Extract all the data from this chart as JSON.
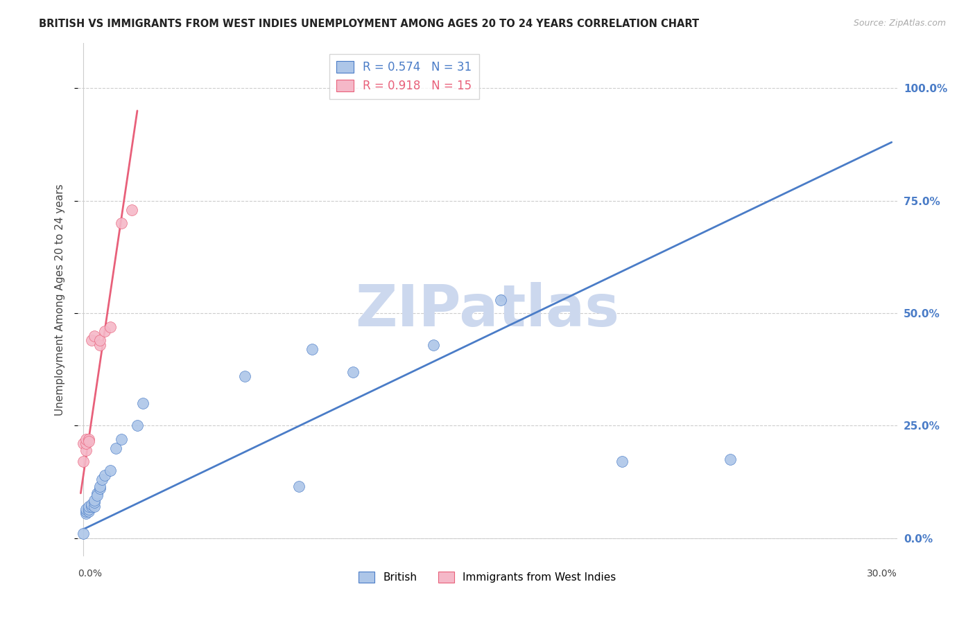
{
  "title": "BRITISH VS IMMIGRANTS FROM WEST INDIES UNEMPLOYMENT AMONG AGES 20 TO 24 YEARS CORRELATION CHART",
  "source": "Source: ZipAtlas.com",
  "ylabel": "Unemployment Among Ages 20 to 24 years",
  "british_R": 0.574,
  "british_N": 31,
  "wi_R": 0.918,
  "wi_N": 15,
  "british_color": "#adc6e8",
  "wi_color": "#f5b8c8",
  "british_line_color": "#4a7cc7",
  "wi_line_color": "#e8607a",
  "right_axis_color": "#4a7cc7",
  "legend_british_color": "#adc6e8",
  "legend_wi_color": "#f5b8c8",
  "british_x": [
    0.0,
    0.001,
    0.001,
    0.001,
    0.002,
    0.002,
    0.002,
    0.003,
    0.003,
    0.004,
    0.004,
    0.004,
    0.005,
    0.005,
    0.006,
    0.006,
    0.007,
    0.008,
    0.01,
    0.012,
    0.014,
    0.02,
    0.022,
    0.06,
    0.08,
    0.085,
    0.1,
    0.13,
    0.155,
    0.2,
    0.24
  ],
  "british_y": [
    0.01,
    0.055,
    0.06,
    0.065,
    0.06,
    0.065,
    0.07,
    0.07,
    0.075,
    0.07,
    0.08,
    0.085,
    0.1,
    0.095,
    0.11,
    0.115,
    0.13,
    0.14,
    0.15,
    0.2,
    0.22,
    0.25,
    0.3,
    0.36,
    0.115,
    0.42,
    0.37,
    0.43,
    0.53,
    0.17,
    0.175
  ],
  "wi_x": [
    0.0,
    0.0,
    0.001,
    0.001,
    0.001,
    0.002,
    0.002,
    0.003,
    0.004,
    0.006,
    0.006,
    0.008,
    0.01,
    0.014,
    0.018
  ],
  "wi_y": [
    0.17,
    0.21,
    0.195,
    0.21,
    0.22,
    0.22,
    0.215,
    0.44,
    0.45,
    0.43,
    0.44,
    0.46,
    0.47,
    0.7,
    0.73
  ],
  "british_trend_x": [
    0.0,
    0.3
  ],
  "british_trend_y": [
    0.02,
    0.88
  ],
  "wi_trend_x": [
    -0.001,
    0.02
  ],
  "wi_trend_y": [
    0.1,
    0.95
  ],
  "xlim": [
    -0.002,
    0.302
  ],
  "ylim": [
    -0.04,
    1.1
  ],
  "yticks": [
    0.0,
    0.25,
    0.5,
    0.75,
    1.0
  ],
  "ytick_labels": [
    "",
    "25.0%",
    "50.0%",
    "75.0%",
    "100.0%"
  ],
  "right_ytick_labels": [
    "0.0%",
    "25.0%",
    "50.0%",
    "75.0%",
    "100.0%"
  ],
  "xtick_left_label": "0.0%",
  "xtick_right_label": "30.0%",
  "background_color": "#ffffff",
  "grid_color": "#cccccc",
  "watermark_text": "ZIPatlas",
  "watermark_color": "#ccd8ee"
}
